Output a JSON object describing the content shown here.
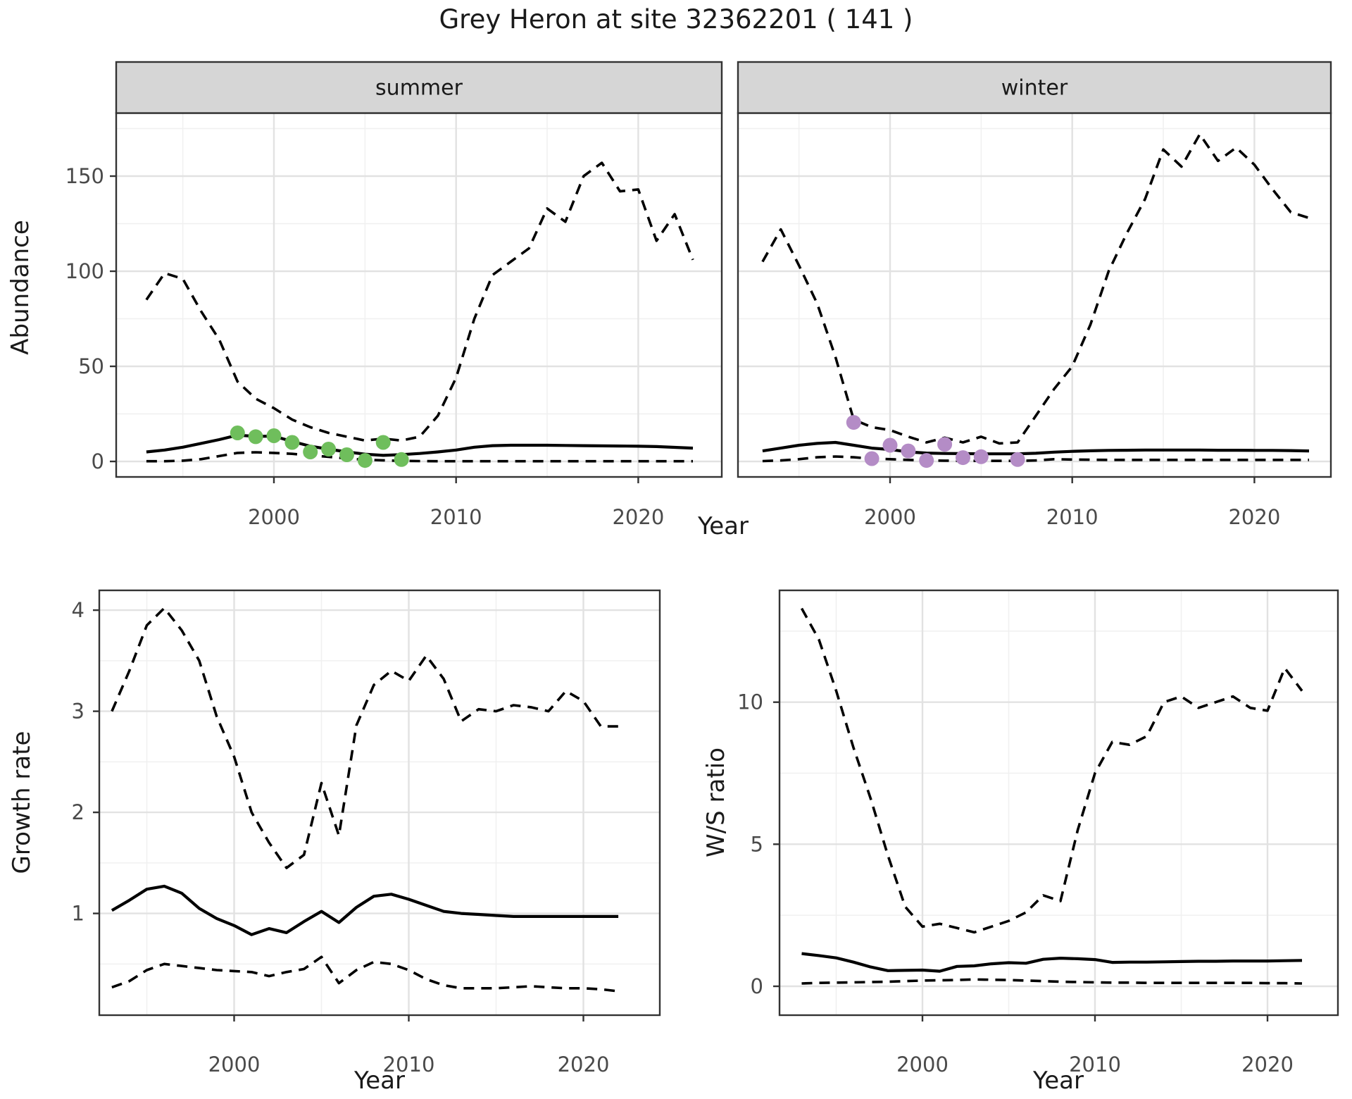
{
  "title": "Grey Heron at site 32362201 ( 141 )",
  "shared_x_label": "Year",
  "colors": {
    "summer_points": "#6FBE5C",
    "winter_points": "#B48CC6",
    "line": "#000000",
    "panel_border": "#333333",
    "strip_fill": "#D6D6D6",
    "grid_major": "#E2E2E2",
    "grid_minor": "#F0F0F0",
    "tick_label": "#4a4a4a",
    "text": "#1a1a1a"
  },
  "chart_data": [
    {
      "id": "abundance_summer",
      "type": "line",
      "facet_label": "summer",
      "ylabel": "Abundance",
      "xlabel": "Year",
      "yticks": [
        0,
        50,
        100,
        150
      ],
      "xticks": [
        2000,
        2010,
        2020
      ],
      "ylim": [
        0,
        181
      ],
      "grid": true,
      "legend": "none",
      "x": [
        1993,
        1994,
        1995,
        1996,
        1997,
        1998,
        1999,
        2000,
        2001,
        2002,
        2003,
        2004,
        2005,
        2006,
        2007,
        2008,
        2009,
        2010,
        2011,
        2012,
        2013,
        2014,
        2015,
        2016,
        2017,
        2018,
        2019,
        2020,
        2021,
        2022,
        2023
      ],
      "series": [
        {
          "name": "upper_CI",
          "style": "dashed",
          "values": [
            85,
            99,
            96,
            79,
            64,
            42,
            33,
            28,
            22,
            18,
            15,
            13,
            11,
            12,
            11,
            13,
            24,
            44,
            75,
            98,
            105,
            112,
            133,
            126,
            150,
            157,
            142,
            143,
            116,
            130,
            106
          ]
        },
        {
          "name": "fit",
          "style": "solid",
          "values": [
            5,
            6,
            7.5,
            9.5,
            11.5,
            13.8,
            13.2,
            13.3,
            10.5,
            8,
            6.5,
            5,
            3.8,
            3.2,
            3.6,
            4.2,
            5,
            6,
            7.5,
            8.3,
            8.5,
            8.5,
            8.5,
            8.4,
            8.3,
            8.2,
            8.1,
            8,
            7.8,
            7.4,
            7
          ]
        },
        {
          "name": "lower_CI",
          "style": "dashed",
          "values": [
            0.1,
            0.1,
            0.4,
            1.2,
            2.8,
            4.5,
            4.8,
            4.5,
            4,
            3.2,
            2.4,
            1.6,
            0.9,
            0.6,
            0.3,
            0.2,
            0.1,
            0.1,
            0.1,
            0.1,
            0.1,
            0.1,
            0.1,
            0.1,
            0.1,
            0.1,
            0.1,
            0.1,
            0.1,
            0.1,
            0.1
          ]
        }
      ],
      "points": {
        "name": "observed_counts",
        "color_key": "summer_points",
        "x": [
          1998,
          1999,
          2000,
          2001,
          2002,
          2003,
          2004,
          2005,
          2006,
          2007
        ],
        "y": [
          15,
          13,
          13.5,
          10,
          5,
          6.5,
          3.5,
          0.5,
          10,
          1
        ]
      }
    },
    {
      "id": "abundance_winter",
      "type": "line",
      "facet_label": "winter",
      "ylabel": "Abundance",
      "xlabel": "Year",
      "yticks": [
        0,
        50,
        100,
        150
      ],
      "xticks": [
        2000,
        2010,
        2020
      ],
      "ylim": [
        0,
        181
      ],
      "grid": true,
      "legend": "none",
      "x": [
        1993,
        1994,
        1995,
        1996,
        1997,
        1998,
        1999,
        2000,
        2001,
        2002,
        2003,
        2004,
        2005,
        2006,
        2007,
        2008,
        2009,
        2010,
        2011,
        2012,
        2013,
        2014,
        2015,
        2016,
        2017,
        2018,
        2019,
        2020,
        2021,
        2022,
        2023
      ],
      "series": [
        {
          "name": "upper_CI",
          "style": "dashed",
          "values": [
            105,
            122,
            103,
            83,
            55,
            22,
            18,
            16.5,
            13,
            10,
            12.5,
            10,
            13,
            9.5,
            10,
            24,
            38,
            50,
            72,
            100,
            120,
            138,
            164,
            155,
            172,
            158,
            165,
            156,
            143,
            131,
            128
          ]
        },
        {
          "name": "fit",
          "style": "solid",
          "values": [
            5.5,
            7,
            8.5,
            9.5,
            10,
            8.5,
            7,
            6.3,
            5,
            4.4,
            4.2,
            4.1,
            4,
            4,
            4,
            4.3,
            4.9,
            5.3,
            5.6,
            5.8,
            5.9,
            6,
            6,
            6,
            6,
            5.9,
            5.9,
            5.8,
            5.8,
            5.7,
            5.5
          ]
        },
        {
          "name": "lower_CI",
          "style": "dashed",
          "values": [
            0.2,
            0.5,
            1.2,
            2.2,
            2.6,
            2.2,
            1.5,
            1.2,
            0.8,
            0.5,
            0.4,
            0.3,
            0.3,
            0.3,
            0.3,
            0.5,
            1.2,
            1,
            0.9,
            0.8,
            0.8,
            0.8,
            0.8,
            0.8,
            0.8,
            0.8,
            0.8,
            0.8,
            0.8,
            0.8,
            0.8
          ]
        }
      ],
      "points": {
        "name": "observed_counts",
        "color_key": "winter_points",
        "x": [
          1998,
          1999,
          2000,
          2001,
          2002,
          2003,
          2004,
          2005,
          2007
        ],
        "y": [
          20.5,
          1.5,
          8.5,
          5.5,
          0.5,
          9,
          2,
          2.5,
          1
        ]
      }
    },
    {
      "id": "growth_rate",
      "type": "line",
      "facet_label": "",
      "ylabel": "Growth rate",
      "xlabel": "Year",
      "yticks": [
        1,
        2,
        3,
        4
      ],
      "xticks": [
        2000,
        2010,
        2020
      ],
      "ylim": [
        0,
        4.2
      ],
      "grid": true,
      "legend": "none",
      "x": [
        1993,
        1994,
        1995,
        1996,
        1997,
        1998,
        1999,
        2000,
        2001,
        2002,
        2003,
        2004,
        2005,
        2006,
        2007,
        2008,
        2009,
        2010,
        2011,
        2012,
        2013,
        2014,
        2015,
        2016,
        2017,
        2018,
        2019,
        2020,
        2021,
        2022
      ],
      "series": [
        {
          "name": "upper_CI",
          "style": "dashed",
          "values": [
            3,
            3.4,
            3.85,
            4.02,
            3.8,
            3.5,
            2.95,
            2.55,
            2,
            1.7,
            1.45,
            1.58,
            2.29,
            1.77,
            2.86,
            3.26,
            3.4,
            3.3,
            3.55,
            3.32,
            2.9,
            3.02,
            3,
            3.06,
            3.04,
            3,
            3.2,
            3.1,
            2.85,
            2.85
          ]
        },
        {
          "name": "fit",
          "style": "solid",
          "values": [
            1.03,
            1.13,
            1.24,
            1.27,
            1.2,
            1.05,
            0.95,
            0.88,
            0.79,
            0.85,
            0.81,
            0.92,
            1.02,
            0.91,
            1.06,
            1.17,
            1.19,
            1.14,
            1.08,
            1.02,
            1,
            0.99,
            0.98,
            0.97,
            0.97,
            0.97,
            0.97,
            0.97,
            0.97,
            0.97
          ]
        },
        {
          "name": "lower_CI",
          "style": "dashed",
          "values": [
            0.27,
            0.33,
            0.44,
            0.5,
            0.48,
            0.46,
            0.44,
            0.43,
            0.42,
            0.38,
            0.42,
            0.45,
            0.57,
            0.31,
            0.44,
            0.52,
            0.5,
            0.44,
            0.35,
            0.29,
            0.26,
            0.26,
            0.26,
            0.27,
            0.28,
            0.27,
            0.26,
            0.26,
            0.25,
            0.23
          ]
        }
      ]
    },
    {
      "id": "ws_ratio",
      "type": "line",
      "facet_label": "",
      "ylabel": "W/S ratio",
      "xlabel": "Year",
      "yticks": [
        0,
        5,
        10
      ],
      "xticks": [
        2000,
        2010,
        2020
      ],
      "ylim": [
        -1,
        13.9
      ],
      "grid": true,
      "legend": "none",
      "x": [
        1993,
        1994,
        1995,
        1996,
        1997,
        1998,
        1999,
        2000,
        2001,
        2002,
        2003,
        2004,
        2005,
        2006,
        2007,
        2008,
        2009,
        2010,
        2011,
        2012,
        2013,
        2014,
        2015,
        2016,
        2017,
        2018,
        2019,
        2020,
        2021,
        2022
      ],
      "series": [
        {
          "name": "upper_CI",
          "style": "dashed",
          "values": [
            13.3,
            12.2,
            10.4,
            8.4,
            6.6,
            4.6,
            2.8,
            2.1,
            2.2,
            2.05,
            1.9,
            2.1,
            2.3,
            2.6,
            3.2,
            3,
            5.5,
            7.5,
            8.6,
            8.5,
            8.8,
            10,
            10.2,
            9.8,
            10,
            10.2,
            9.8,
            9.7,
            11.2,
            10.4
          ]
        },
        {
          "name": "fit",
          "style": "solid",
          "values": [
            1.15,
            1.08,
            1,
            0.85,
            0.68,
            0.55,
            0.56,
            0.57,
            0.53,
            0.7,
            0.72,
            0.79,
            0.83,
            0.81,
            0.95,
            0.99,
            0.97,
            0.94,
            0.84,
            0.85,
            0.85,
            0.86,
            0.87,
            0.88,
            0.88,
            0.89,
            0.89,
            0.89,
            0.9,
            0.91
          ]
        },
        {
          "name": "lower_CI",
          "style": "dashed",
          "values": [
            0.1,
            0.12,
            0.13,
            0.14,
            0.15,
            0.16,
            0.18,
            0.2,
            0.21,
            0.22,
            0.24,
            0.23,
            0.22,
            0.2,
            0.18,
            0.16,
            0.15,
            0.14,
            0.13,
            0.13,
            0.12,
            0.12,
            0.12,
            0.12,
            0.12,
            0.12,
            0.12,
            0.11,
            0.11,
            0.1
          ]
        }
      ]
    }
  ]
}
